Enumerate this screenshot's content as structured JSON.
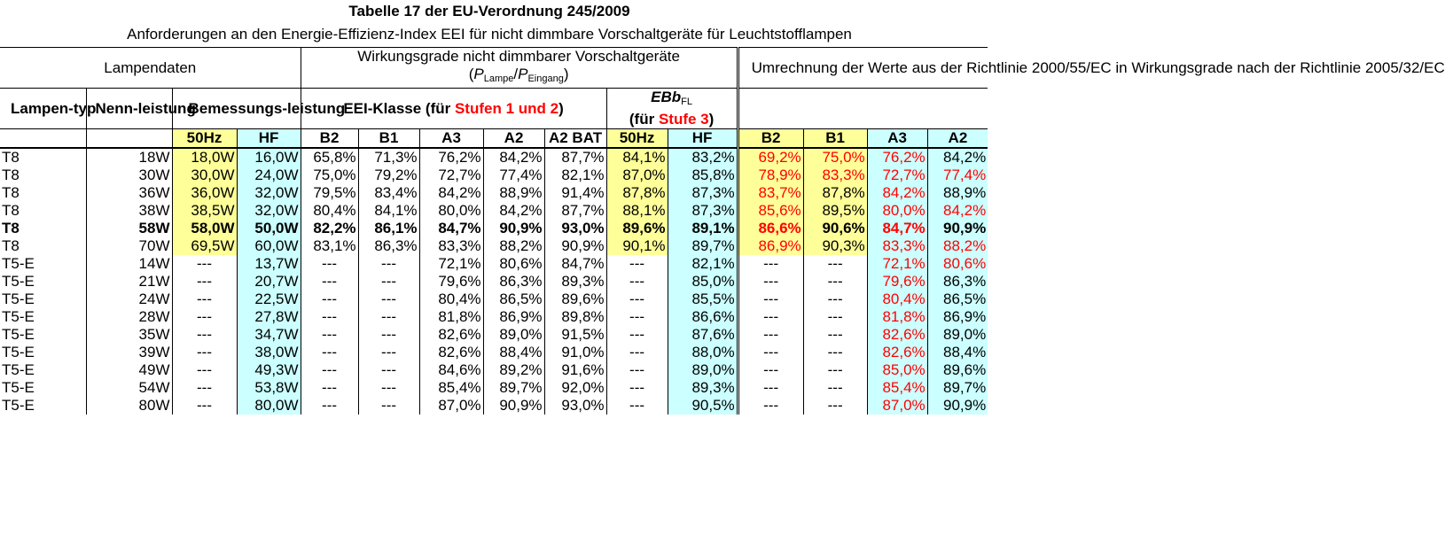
{
  "title": "Tabelle 17 der EU-Verordnung 245/2009",
  "subtitle": "Anforderungen an den Energie-Effizienz-Index EEI für nicht dimmbare Vorschaltgeräte für Leuchtstofflampen",
  "header": {
    "group_lampendaten": "Lampendaten",
    "group_wirkungsgrade_line1": "Wirkungsgrade nicht dimmbarer Vorschaltgeräte",
    "formula": {
      "open": "(",
      "p1": "P",
      "p1_sub": "Lampe",
      "slash": "/",
      "p2": "P",
      "p2_sub": "Eingang",
      "close": ")"
    },
    "group_umrechnung": "Umrechnung der Werte aus der Richtlinie 2000/55/EC in Wirkungsgrade nach der Richtlinie 2005/32/EC",
    "col_lampentyp": "Lampen-typ",
    "col_nennleistung": "Nenn-leistung",
    "col_bemessungsleistung": "Bemessungs-leistung",
    "eei_klasse_prefix": "EEI-Klasse (für ",
    "eei_klasse_red": "Stufen 1 und 2",
    "eei_klasse_suffix": ")",
    "ebb_main": "EBb",
    "ebb_sub": "FL",
    "ebb_line2_prefix": "(für ",
    "ebb_line2_red": "Stufe 3",
    "ebb_line2_suffix": ")",
    "sub_cols": [
      "50Hz",
      "HF",
      "B2",
      "B1",
      "A3",
      "A2",
      "A2 BAT",
      "50Hz",
      "HF",
      "B2",
      "B1",
      "A3",
      "A2"
    ]
  },
  "rows": [
    {
      "typ": "T8",
      "nenn": "18W",
      "hz50": "18,0W",
      "hf": "16,0W",
      "b2": "65,8%",
      "b1": "71,3%",
      "a3": "76,2%",
      "a2": "84,2%",
      "a2bat": "87,7%",
      "ebb50": "84,1%",
      "ebbhf": "83,2%",
      "u_b2": "69,2%",
      "u_b1": "75,0%",
      "u_a3": "76,2%",
      "u_a2": "84,2%"
    },
    {
      "typ": "T8",
      "nenn": "30W",
      "hz50": "30,0W",
      "hf": "24,0W",
      "b2": "75,0%",
      "b1": "79,2%",
      "a3": "72,7%",
      "a2": "77,4%",
      "a2bat": "82,1%",
      "ebb50": "87,0%",
      "ebbhf": "85,8%",
      "u_b2": "78,9%",
      "u_b1": "83,3%",
      "u_a3": "72,7%",
      "u_a2": "77,4%"
    },
    {
      "typ": "T8",
      "nenn": "36W",
      "hz50": "36,0W",
      "hf": "32,0W",
      "b2": "79,5%",
      "b1": "83,4%",
      "a3": "84,2%",
      "a2": "88,9%",
      "a2bat": "91,4%",
      "ebb50": "87,8%",
      "ebbhf": "87,3%",
      "u_b2": "83,7%",
      "u_b1": "87,8%",
      "u_a3": "84,2%",
      "u_a2": "88,9%"
    },
    {
      "typ": "T8",
      "nenn": "38W",
      "hz50": "38,5W",
      "hf": "32,0W",
      "b2": "80,4%",
      "b1": "84,1%",
      "a3": "80,0%",
      "a2": "84,2%",
      "a2bat": "87,7%",
      "ebb50": "88,1%",
      "ebbhf": "87,3%",
      "u_b2": "85,6%",
      "u_b1": "89,5%",
      "u_a3": "80,0%",
      "u_a2": "84,2%"
    },
    {
      "typ": "T8",
      "nenn": "58W",
      "hz50": "58,0W",
      "hf": "50,0W",
      "b2": "82,2%",
      "b1": "86,1%",
      "a3": "84,7%",
      "a2": "90,9%",
      "a2bat": "93,0%",
      "ebb50": "89,6%",
      "ebbhf": "89,1%",
      "u_b2": "86,6%",
      "u_b1": "90,6%",
      "u_a3": "84,7%",
      "u_a2": "90,9%"
    },
    {
      "typ": "T8",
      "nenn": "70W",
      "hz50": "69,5W",
      "hf": "60,0W",
      "b2": "83,1%",
      "b1": "86,3%",
      "a3": "83,3%",
      "a2": "88,2%",
      "a2bat": "90,9%",
      "ebb50": "90,1%",
      "ebbhf": "89,7%",
      "u_b2": "86,9%",
      "u_b1": "90,3%",
      "u_a3": "83,3%",
      "u_a2": "88,2%"
    },
    {
      "typ": "T5-E",
      "nenn": "14W",
      "hz50": "---",
      "hf": "13,7W",
      "b2": "---",
      "b1": "---",
      "a3": "72,1%",
      "a2": "80,6%",
      "a2bat": "84,7%",
      "ebb50": "---",
      "ebbhf": "82,1%",
      "u_b2": "---",
      "u_b1": "---",
      "u_a3": "72,1%",
      "u_a2": "80,6%"
    },
    {
      "typ": "T5-E",
      "nenn": "21W",
      "hz50": "---",
      "hf": "20,7W",
      "b2": "---",
      "b1": "---",
      "a3": "79,6%",
      "a2": "86,3%",
      "a2bat": "89,3%",
      "ebb50": "---",
      "ebbhf": "85,0%",
      "u_b2": "---",
      "u_b1": "---",
      "u_a3": "79,6%",
      "u_a2": "86,3%"
    },
    {
      "typ": "T5-E",
      "nenn": "24W",
      "hz50": "---",
      "hf": "22,5W",
      "b2": "---",
      "b1": "---",
      "a3": "80,4%",
      "a2": "86,5%",
      "a2bat": "89,6%",
      "ebb50": "---",
      "ebbhf": "85,5%",
      "u_b2": "---",
      "u_b1": "---",
      "u_a3": "80,4%",
      "u_a2": "86,5%"
    },
    {
      "typ": "T5-E",
      "nenn": "28W",
      "hz50": "---",
      "hf": "27,8W",
      "b2": "---",
      "b1": "---",
      "a3": "81,8%",
      "a2": "86,9%",
      "a2bat": "89,8%",
      "ebb50": "---",
      "ebbhf": "86,6%",
      "u_b2": "---",
      "u_b1": "---",
      "u_a3": "81,8%",
      "u_a2": "86,9%"
    },
    {
      "typ": "T5-E",
      "nenn": "35W",
      "hz50": "---",
      "hf": "34,7W",
      "b2": "---",
      "b1": "---",
      "a3": "82,6%",
      "a2": "89,0%",
      "a2bat": "91,5%",
      "ebb50": "---",
      "ebbhf": "87,6%",
      "u_b2": "---",
      "u_b1": "---",
      "u_a3": "82,6%",
      "u_a2": "89,0%"
    },
    {
      "typ": "T5-E",
      "nenn": "39W",
      "hz50": "---",
      "hf": "38,0W",
      "b2": "---",
      "b1": "---",
      "a3": "82,6%",
      "a2": "88,4%",
      "a2bat": "91,0%",
      "ebb50": "---",
      "ebbhf": "88,0%",
      "u_b2": "---",
      "u_b1": "---",
      "u_a3": "82,6%",
      "u_a2": "88,4%"
    },
    {
      "typ": "T5-E",
      "nenn": "49W",
      "hz50": "---",
      "hf": "49,3W",
      "b2": "---",
      "b1": "---",
      "a3": "84,6%",
      "a2": "89,2%",
      "a2bat": "91,6%",
      "ebb50": "---",
      "ebbhf": "89,0%",
      "u_b2": "---",
      "u_b1": "---",
      "u_a3": "85,0%",
      "u_a2": "89,6%"
    },
    {
      "typ": "T5-E",
      "nenn": "54W",
      "hz50": "---",
      "hf": "53,8W",
      "b2": "---",
      "b1": "---",
      "a3": "85,4%",
      "a2": "89,7%",
      "a2bat": "92,0%",
      "ebb50": "---",
      "ebbhf": "89,3%",
      "u_b2": "---",
      "u_b1": "---",
      "u_a3": "85,4%",
      "u_a2": "89,7%"
    },
    {
      "typ": "T5-E",
      "nenn": "80W",
      "hz50": "---",
      "hf": "80,0W",
      "b2": "---",
      "b1": "---",
      "a3": "87,0%",
      "a2": "90,9%",
      "a2bat": "93,0%",
      "ebb50": "---",
      "ebbhf": "90,5%",
      "u_b2": "---",
      "u_b1": "---",
      "u_a3": "87,0%",
      "u_a2": "90,9%"
    }
  ],
  "bold_row_index": 4,
  "red_cells": {
    "u_b2": [
      0,
      1,
      2,
      3,
      4,
      5
    ],
    "u_b1": [
      0,
      1
    ],
    "u_a3": [
      0,
      1,
      2,
      3,
      4,
      5,
      6,
      7,
      8,
      9,
      10,
      11,
      12,
      13,
      14
    ],
    "u_a2": [
      1,
      3,
      5,
      6
    ]
  },
  "colors": {
    "yellow": "#ffff99",
    "cyan": "#ccffff",
    "red": "#ff0000"
  }
}
